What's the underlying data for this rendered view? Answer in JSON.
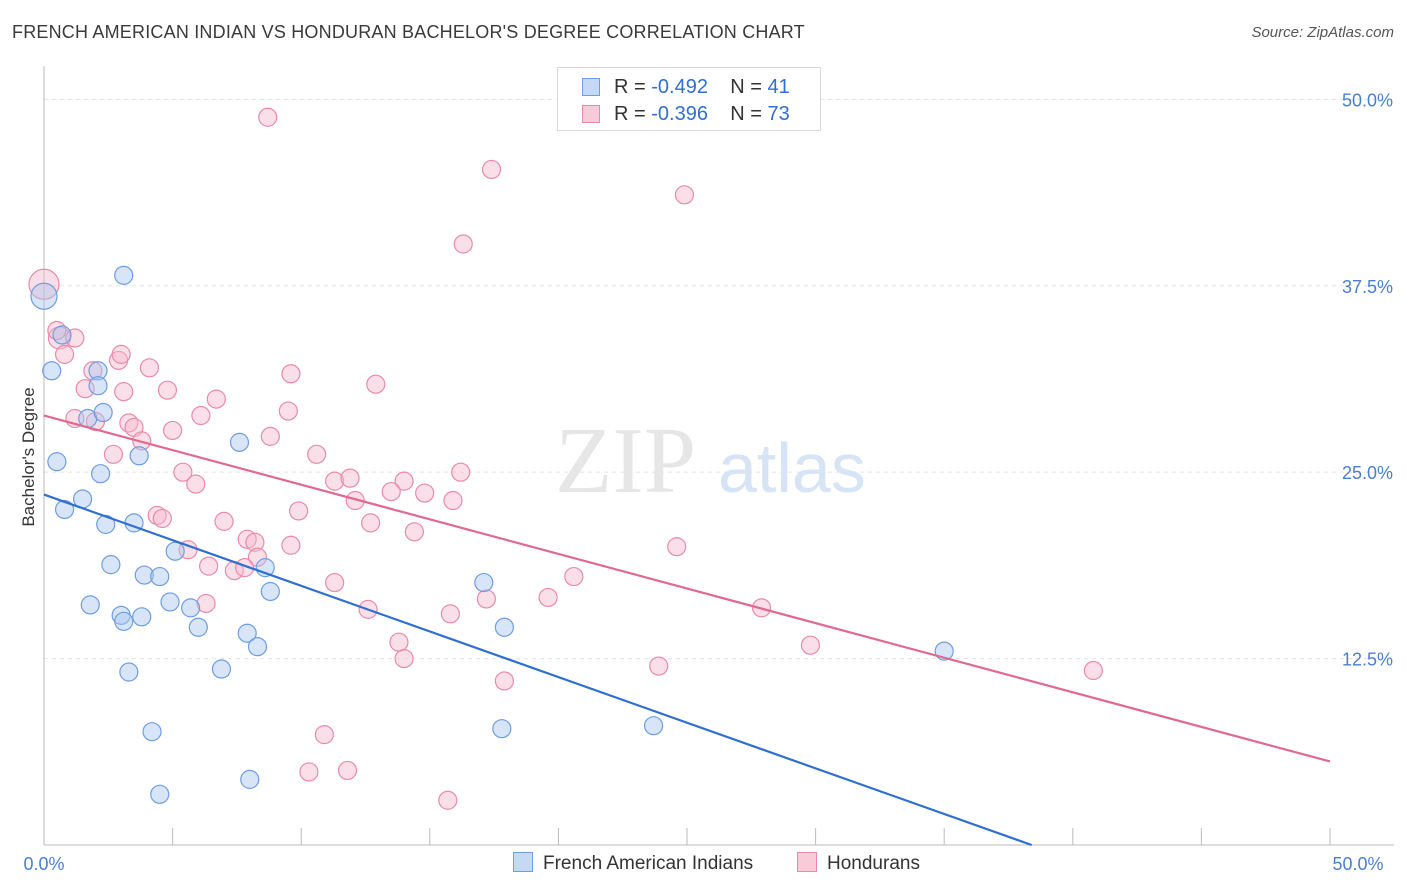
{
  "header": {
    "title": "FRENCH AMERICAN INDIAN VS HONDURAN BACHELOR'S DEGREE CORRELATION CHART",
    "source": "Source: ZipAtlas.com"
  },
  "legend_top": {
    "rows": [
      {
        "r_label": "R = ",
        "r_value": "-0.492",
        "n_label": "N = ",
        "n_value": "41"
      },
      {
        "r_label": "R = ",
        "r_value": "-0.396",
        "n_label": "N = ",
        "n_value": "73"
      }
    ]
  },
  "legend_bottom": {
    "series_a": "French American Indians",
    "series_b": "Hondurans"
  },
  "watermark": {
    "zip": "ZIP",
    "atlas": "atlas"
  },
  "colors": {
    "blue_fill": "#a9c6ef",
    "blue_stroke": "#6d9ee0",
    "blue_line": "#2f6fd0",
    "pink_fill": "#f6b8cb",
    "pink_stroke": "#e98aa8",
    "pink_line": "#e0698f",
    "axis_text": "#4a7fd0",
    "grid": "#e2e2e2"
  },
  "chart_data": {
    "type": "scatter",
    "title": "FRENCH AMERICAN INDIAN VS HONDURAN BACHELOR'S DEGREE CORRELATION CHART",
    "xlabel": "",
    "ylabel": "Bachelor's Degree",
    "xlim": [
      0,
      50
    ],
    "ylim": [
      0,
      51.5
    ],
    "x_tick_labels": [
      "0.0%",
      "50.0%"
    ],
    "y_ticks": [
      12.5,
      25.0,
      37.5,
      50.0
    ],
    "y_tick_labels": [
      "12.5%",
      "25.0%",
      "37.5%",
      "50.0%"
    ],
    "grid": true,
    "legend_placement": "top-center",
    "series": [
      {
        "name": "French American Indians",
        "color": "#6d9ee0",
        "r": -0.492,
        "n": 41,
        "trend": {
          "x0": 0.0,
          "y0": 23.5,
          "x1": 38.4,
          "y1": 0.0
        },
        "points": [
          [
            0.0,
            36.8,
            12
          ],
          [
            0.7,
            34.2,
            8
          ],
          [
            0.3,
            31.8,
            8
          ],
          [
            2.1,
            31.8,
            8
          ],
          [
            2.1,
            30.8,
            8
          ],
          [
            1.7,
            28.6,
            8
          ],
          [
            2.3,
            29.0,
            8
          ],
          [
            3.1,
            38.2,
            8
          ],
          [
            3.7,
            26.1,
            8
          ],
          [
            0.5,
            25.7,
            8
          ],
          [
            2.2,
            24.9,
            8
          ],
          [
            1.5,
            23.2,
            8
          ],
          [
            0.8,
            22.5,
            8
          ],
          [
            2.4,
            21.5,
            8
          ],
          [
            3.5,
            21.6,
            8
          ],
          [
            5.1,
            19.7,
            8
          ],
          [
            2.6,
            18.8,
            8
          ],
          [
            3.9,
            18.1,
            8
          ],
          [
            4.5,
            18.0,
            8
          ],
          [
            7.6,
            27.0,
            8
          ],
          [
            8.6,
            18.6,
            8
          ],
          [
            1.8,
            16.1,
            8
          ],
          [
            3.8,
            15.3,
            8
          ],
          [
            3.0,
            15.4,
            8
          ],
          [
            3.1,
            15.0,
            8
          ],
          [
            4.9,
            16.3,
            8
          ],
          [
            5.7,
            15.9,
            8
          ],
          [
            6.0,
            14.6,
            8
          ],
          [
            7.9,
            14.2,
            8
          ],
          [
            8.8,
            17.0,
            8
          ],
          [
            8.3,
            13.3,
            8
          ],
          [
            17.1,
            17.6,
            8
          ],
          [
            17.9,
            14.6,
            8
          ],
          [
            3.3,
            11.6,
            8
          ],
          [
            6.9,
            11.8,
            8
          ],
          [
            4.2,
            7.6,
            8
          ],
          [
            17.8,
            7.8,
            8
          ],
          [
            23.7,
            8.0,
            8
          ],
          [
            8.0,
            4.4,
            8
          ],
          [
            4.5,
            3.4,
            8
          ],
          [
            35.0,
            13.0,
            8
          ]
        ]
      },
      {
        "name": "Hondurans",
        "color": "#e98aa8",
        "r": -0.396,
        "n": 73,
        "trend": {
          "x0": 0.0,
          "y0": 28.8,
          "x1": 50.0,
          "y1": 5.6
        },
        "points": [
          [
            0.0,
            37.6,
            14
          ],
          [
            0.6,
            34.0,
            10
          ],
          [
            1.2,
            34.0,
            8
          ],
          [
            0.8,
            32.9,
            8
          ],
          [
            2.9,
            32.5,
            8
          ],
          [
            3.0,
            32.9,
            8
          ],
          [
            1.9,
            31.8,
            8
          ],
          [
            4.1,
            32.0,
            8
          ],
          [
            9.6,
            31.6,
            8
          ],
          [
            12.9,
            30.9,
            8
          ],
          [
            1.6,
            30.6,
            8
          ],
          [
            3.1,
            30.4,
            8
          ],
          [
            4.8,
            30.5,
            8
          ],
          [
            6.7,
            29.9,
            8
          ],
          [
            9.5,
            29.1,
            8
          ],
          [
            6.1,
            28.8,
            8
          ],
          [
            1.2,
            28.6,
            8
          ],
          [
            2.0,
            28.4,
            8
          ],
          [
            3.3,
            28.3,
            8
          ],
          [
            3.5,
            28.0,
            8
          ],
          [
            3.8,
            27.1,
            8
          ],
          [
            5.0,
            27.8,
            8
          ],
          [
            8.8,
            27.4,
            8
          ],
          [
            2.7,
            26.2,
            8
          ],
          [
            10.6,
            26.2,
            8
          ],
          [
            5.4,
            25.0,
            8
          ],
          [
            5.9,
            24.2,
            8
          ],
          [
            11.3,
            24.4,
            8
          ],
          [
            11.9,
            24.6,
            8
          ],
          [
            14.0,
            24.4,
            8
          ],
          [
            13.5,
            23.7,
            8
          ],
          [
            14.8,
            23.6,
            8
          ],
          [
            12.1,
            23.1,
            8
          ],
          [
            15.9,
            23.1,
            8
          ],
          [
            16.2,
            25.0,
            8
          ],
          [
            9.9,
            22.4,
            8
          ],
          [
            4.4,
            22.1,
            8
          ],
          [
            4.6,
            21.9,
            8
          ],
          [
            7.0,
            21.7,
            8
          ],
          [
            12.7,
            21.6,
            8
          ],
          [
            14.4,
            21.0,
            8
          ],
          [
            7.9,
            20.5,
            8
          ],
          [
            8.2,
            20.3,
            8
          ],
          [
            9.6,
            20.1,
            8
          ],
          [
            5.6,
            19.8,
            8
          ],
          [
            8.3,
            19.3,
            8
          ],
          [
            6.4,
            18.7,
            8
          ],
          [
            7.4,
            18.4,
            8
          ],
          [
            7.8,
            18.6,
            8
          ],
          [
            11.3,
            17.6,
            8
          ],
          [
            20.6,
            18.0,
            8
          ],
          [
            24.6,
            20.0,
            8
          ],
          [
            19.6,
            16.6,
            8
          ],
          [
            17.2,
            16.5,
            8
          ],
          [
            6.3,
            16.2,
            8
          ],
          [
            12.6,
            15.8,
            8
          ],
          [
            15.8,
            15.5,
            8
          ],
          [
            27.9,
            15.9,
            8
          ],
          [
            13.8,
            13.6,
            8
          ],
          [
            14.0,
            12.5,
            8
          ],
          [
            29.8,
            13.4,
            8
          ],
          [
            23.9,
            12.0,
            8
          ],
          [
            17.9,
            11.0,
            8
          ],
          [
            40.8,
            11.7,
            8
          ],
          [
            10.9,
            7.4,
            8
          ],
          [
            10.3,
            4.9,
            8
          ],
          [
            11.8,
            5.0,
            8
          ],
          [
            15.7,
            3.0,
            8
          ],
          [
            8.7,
            48.8,
            8
          ],
          [
            17.4,
            45.3,
            8
          ],
          [
            24.9,
            43.6,
            8
          ],
          [
            16.3,
            40.3,
            8
          ],
          [
            0.5,
            34.5,
            8
          ]
        ]
      }
    ]
  }
}
